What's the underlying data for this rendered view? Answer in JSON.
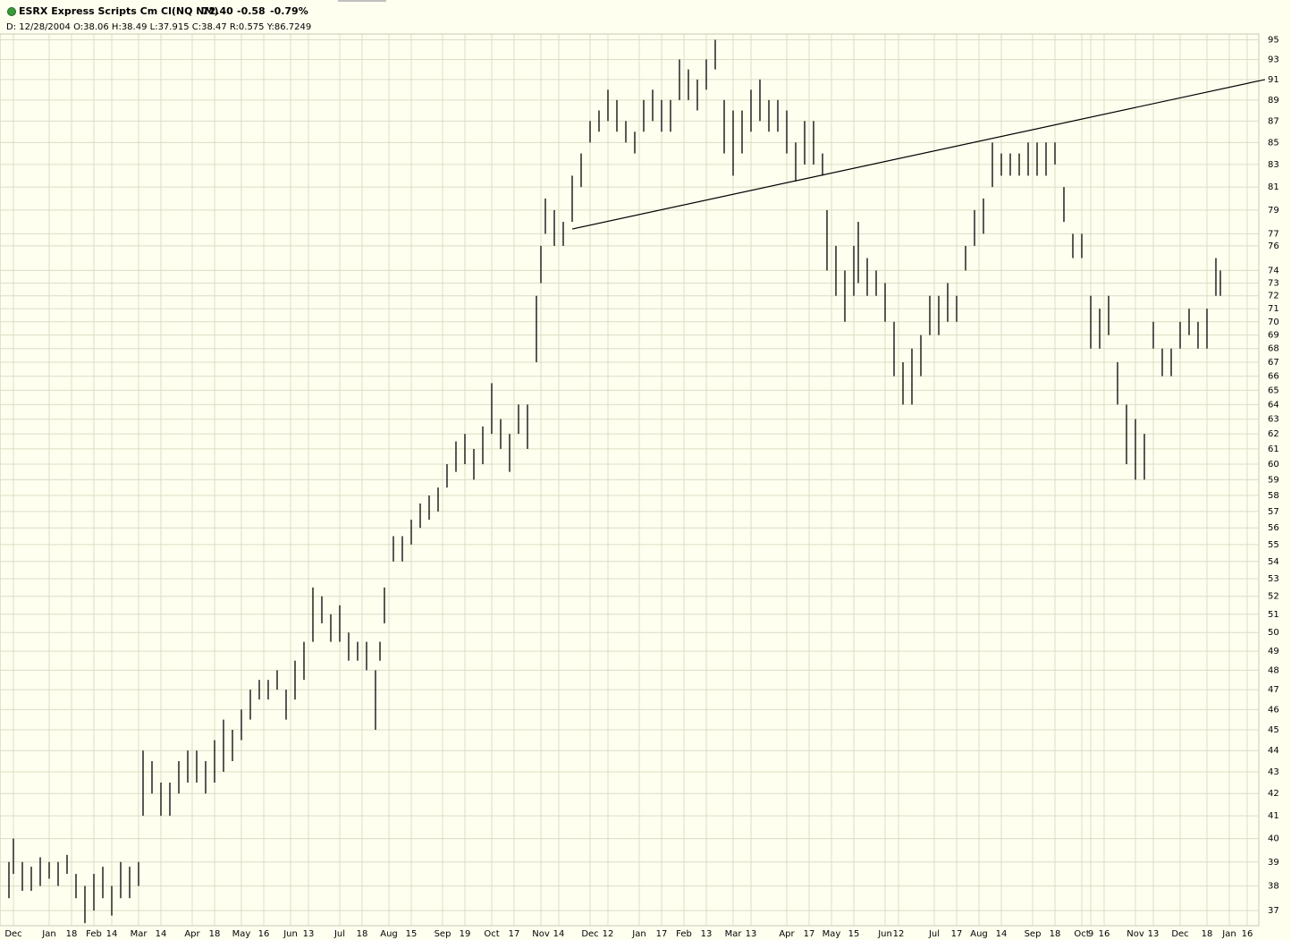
{
  "chart_data": {
    "type": "ohlc",
    "title": "ESRX Express Scripts Cm Cl(NQ NM)",
    "last": "72.40",
    "change": "-0.58",
    "change_pct": "-0.79%",
    "info": "D: 12/28/2004 O:38.06 H:38.49 L:37.915 C:38.47 R:0.575 Y:86.7249",
    "log_scale": true,
    "grid": true,
    "color": "#000000",
    "change_color": "#e00000",
    "xlim": [
      0,
      284
    ],
    "ylim": [
      36.4,
      95.6
    ],
    "yticks": [
      37,
      38,
      39,
      40,
      41,
      42,
      43,
      44,
      45,
      46,
      47,
      48,
      49,
      50,
      51,
      52,
      53,
      54,
      55,
      56,
      57,
      58,
      59,
      60,
      61,
      62,
      63,
      64,
      65,
      66,
      67,
      68,
      69,
      70,
      71,
      72,
      73,
      74,
      76,
      77,
      79,
      81,
      83,
      85,
      87,
      89,
      91,
      93,
      95
    ],
    "xticks": [
      {
        "value": 3,
        "label": "Dec"
      },
      {
        "value": 11,
        "label": "Jan"
      },
      {
        "value": 16,
        "label": "18"
      },
      {
        "value": 21,
        "label": "Feb"
      },
      {
        "value": 25,
        "label": "14"
      },
      {
        "value": 31,
        "label": "Mar"
      },
      {
        "value": 36,
        "label": "14"
      },
      {
        "value": 43,
        "label": "Apr"
      },
      {
        "value": 48,
        "label": "18"
      },
      {
        "value": 54,
        "label": "May"
      },
      {
        "value": 59,
        "label": "16"
      },
      {
        "value": 65,
        "label": "Jun"
      },
      {
        "value": 69,
        "label": "13"
      },
      {
        "value": 76,
        "label": "Jul"
      },
      {
        "value": 81,
        "label": "18"
      },
      {
        "value": 87,
        "label": "Aug"
      },
      {
        "value": 92,
        "label": "15"
      },
      {
        "value": 99,
        "label": "Sep"
      },
      {
        "value": 104,
        "label": "19"
      },
      {
        "value": 110,
        "label": "Oct"
      },
      {
        "value": 115,
        "label": "17"
      },
      {
        "value": 121,
        "label": "Nov"
      },
      {
        "value": 125,
        "label": "14"
      },
      {
        "value": 132,
        "label": "Dec"
      },
      {
        "value": 136,
        "label": "12"
      },
      {
        "value": 143,
        "label": "Jan"
      },
      {
        "value": 148,
        "label": "17"
      },
      {
        "value": 153,
        "label": "Feb"
      },
      {
        "value": 158,
        "label": "13"
      },
      {
        "value": 164,
        "label": "Mar"
      },
      {
        "value": 168,
        "label": "13"
      },
      {
        "value": 176,
        "label": "Apr"
      },
      {
        "value": 181,
        "label": "17"
      },
      {
        "value": 186,
        "label": "May"
      },
      {
        "value": 191,
        "label": "15"
      },
      {
        "value": 198,
        "label": "Jun"
      },
      {
        "value": 201,
        "label": "12"
      },
      {
        "value": 209,
        "label": "Jul"
      },
      {
        "value": 214,
        "label": "17"
      },
      {
        "value": 219,
        "label": "Aug"
      },
      {
        "value": 224,
        "label": "14"
      },
      {
        "value": 231,
        "label": "Sep"
      },
      {
        "value": 236,
        "label": "18"
      },
      {
        "value": 242,
        "label": "Oct"
      },
      {
        "value": 244,
        "label": "9"
      },
      {
        "value": 247,
        "label": "16"
      },
      {
        "value": 254,
        "label": "Nov"
      },
      {
        "value": 258,
        "label": "13"
      },
      {
        "value": 264,
        "label": "Dec"
      },
      {
        "value": 270,
        "label": "18"
      },
      {
        "value": 275,
        "label": "Jan"
      },
      {
        "value": 279,
        "label": "16"
      }
    ],
    "bars": {
      "x": [
        2,
        3,
        5,
        7,
        9,
        11,
        13,
        15,
        17,
        19,
        21,
        23,
        25,
        27,
        29,
        31,
        32,
        34,
        36,
        38,
        40,
        42,
        44,
        46,
        48,
        50,
        52,
        54,
        56,
        58,
        60,
        62,
        64,
        66,
        68,
        70,
        72,
        74,
        76,
        78,
        80,
        82,
        84,
        85,
        86,
        88,
        90,
        92,
        94,
        96,
        98,
        100,
        102,
        104,
        106,
        108,
        110,
        112,
        114,
        116,
        118,
        120,
        121,
        122,
        124,
        126,
        128,
        130,
        132,
        134,
        136,
        138,
        140,
        142,
        144,
        146,
        148,
        150,
        152,
        154,
        156,
        158,
        160,
        162,
        164,
        166,
        168,
        170,
        172,
        174,
        176,
        178,
        180,
        182,
        184,
        185,
        187,
        189,
        191,
        192,
        194,
        196,
        198,
        200,
        202,
        204,
        206,
        208,
        210,
        212,
        214,
        216,
        218,
        220,
        222,
        224,
        226,
        228,
        230,
        232,
        234,
        236,
        238,
        240,
        242,
        244,
        246,
        248,
        250,
        252,
        254,
        256,
        258,
        260,
        262,
        264,
        266,
        268,
        270,
        272,
        273
      ],
      "high": [
        39,
        40,
        39,
        38.8,
        39.2,
        39,
        39,
        39.3,
        38.5,
        38,
        38.5,
        38.8,
        38,
        39,
        38.8,
        39,
        44,
        43.5,
        42.5,
        42.5,
        43.5,
        44,
        44,
        43.5,
        44.5,
        45.5,
        45,
        46,
        47,
        47.5,
        47.5,
        48,
        47,
        48.5,
        49.5,
        52.5,
        52,
        51,
        51.5,
        50,
        49.5,
        49.5,
        48,
        49.5,
        52.5,
        55.5,
        55.5,
        56.5,
        57.5,
        58,
        58.5,
        60,
        61.5,
        62,
        61,
        62.5,
        65.5,
        63,
        62,
        64,
        64,
        72,
        76,
        80,
        79,
        78,
        82,
        84,
        87,
        88,
        90,
        89,
        87,
        86,
        89,
        90,
        89,
        89,
        93,
        92,
        91,
        93,
        95,
        89,
        88,
        88,
        90,
        91,
        89,
        89,
        88,
        85,
        87,
        87,
        84,
        79,
        76,
        74,
        76,
        78,
        75,
        74,
        73,
        70,
        67,
        68,
        69,
        72,
        72,
        73,
        72,
        76,
        79,
        80,
        85,
        84,
        84,
        84,
        85,
        85,
        85,
        85,
        81,
        77,
        77,
        72,
        71,
        72,
        67,
        64,
        63,
        62,
        70,
        68,
        68,
        70,
        71,
        70,
        71,
        75,
        74
      ],
      "low": [
        37.5,
        38.5,
        37.8,
        37.8,
        38,
        38.3,
        38,
        38.5,
        37.5,
        36.5,
        37,
        37.5,
        36.8,
        37.5,
        37.5,
        38,
        41,
        42,
        41,
        41,
        42,
        42.5,
        42.5,
        42,
        42.5,
        43,
        43.5,
        44.5,
        45.5,
        46.5,
        46.5,
        47,
        45.5,
        46.5,
        47.5,
        49.5,
        50.5,
        49.5,
        49.5,
        48.5,
        48.5,
        48,
        45,
        48.5,
        50.5,
        54,
        54,
        55,
        56,
        56.5,
        57,
        58.5,
        59.5,
        60,
        59,
        60,
        62,
        61,
        59.5,
        62,
        61,
        67,
        73,
        77,
        76,
        76,
        78,
        81,
        85,
        86,
        87,
        86,
        85,
        84,
        86,
        87,
        86,
        86,
        89,
        89,
        88,
        90,
        92,
        84,
        82,
        84,
        86,
        87,
        86,
        86,
        84,
        81.5,
        83,
        83,
        82,
        74,
        72,
        70,
        72,
        73,
        72,
        72,
        70,
        66,
        64,
        64,
        66,
        69,
        69,
        70,
        70,
        74,
        76,
        77,
        81,
        82,
        82,
        82,
        82,
        82,
        82,
        83,
        78,
        75,
        75,
        68,
        68,
        69,
        64,
        60,
        59,
        59,
        68,
        66,
        66,
        68,
        69,
        68,
        68,
        72,
        72
      ]
    },
    "trendline": {
      "x": [
        128,
        283
      ],
      "y": [
        77.4,
        91.0
      ]
    }
  }
}
